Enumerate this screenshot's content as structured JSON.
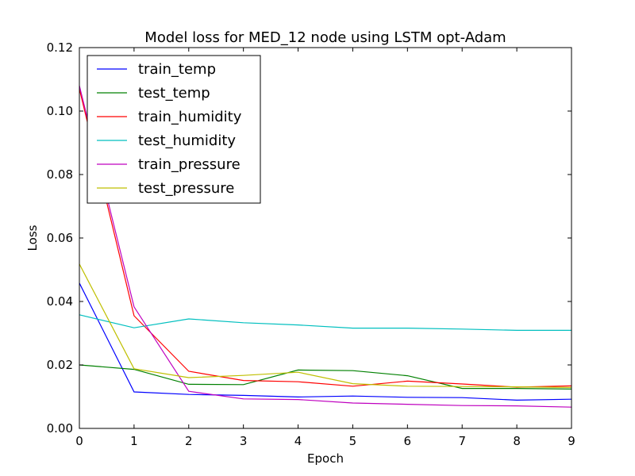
{
  "chart_data": {
    "type": "line",
    "title": "Model loss for MED_12 node using LSTM opt-Adam",
    "xlabel": "Epoch",
    "ylabel": "Loss",
    "xlim": [
      0,
      9
    ],
    "ylim": [
      0,
      0.12
    ],
    "xticks": [
      0,
      1,
      2,
      3,
      4,
      5,
      6,
      7,
      8,
      9
    ],
    "yticks": [
      "0.00",
      "0.02",
      "0.04",
      "0.06",
      "0.08",
      "0.10",
      "0.12"
    ],
    "grid": false,
    "legend_position": "top-left",
    "x": [
      0,
      1,
      2,
      3,
      4,
      5,
      6,
      7,
      8,
      9
    ],
    "series": [
      {
        "name": "train_temp",
        "color": "#0000ff",
        "values": [
          0.0458,
          0.0115,
          0.0107,
          0.0104,
          0.0099,
          0.0102,
          0.0098,
          0.0097,
          0.0089,
          0.0092
        ]
      },
      {
        "name": "test_temp",
        "color": "#008000",
        "values": [
          0.02,
          0.0186,
          0.0139,
          0.0138,
          0.0184,
          0.0182,
          0.0166,
          0.0126,
          0.0126,
          0.0124
        ]
      },
      {
        "name": "train_humidity",
        "color": "#ff0000",
        "values": [
          0.107,
          0.0355,
          0.018,
          0.0151,
          0.0147,
          0.0133,
          0.0149,
          0.014,
          0.013,
          0.0134
        ]
      },
      {
        "name": "test_humidity",
        "color": "#00bfbf",
        "values": [
          0.0358,
          0.0317,
          0.0345,
          0.0333,
          0.0326,
          0.0316,
          0.0316,
          0.0313,
          0.0309,
          0.0309
        ]
      },
      {
        "name": "train_pressure",
        "color": "#bf00bf",
        "values": [
          0.108,
          0.0383,
          0.0117,
          0.0093,
          0.0091,
          0.008,
          0.0076,
          0.0072,
          0.0071,
          0.0067
        ]
      },
      {
        "name": "test_pressure",
        "color": "#bfbf00",
        "values": [
          0.0518,
          0.0188,
          0.016,
          0.0167,
          0.0177,
          0.0141,
          0.0133,
          0.0132,
          0.0131,
          0.0129
        ]
      }
    ]
  }
}
